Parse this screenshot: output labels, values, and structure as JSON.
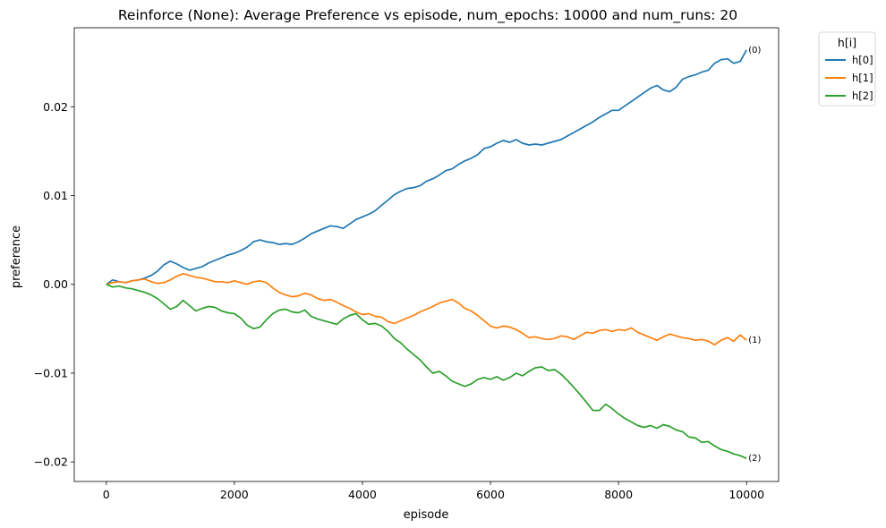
{
  "chart_data": {
    "type": "line",
    "title": "Reinforce (None): Average Preference vs episode, num_epochs: 10000 and num_runs: 20",
    "xlabel": "episode",
    "ylabel": "preference",
    "xlim": [
      -500,
      10500
    ],
    "ylim": [
      -0.0222,
      0.0289
    ],
    "xticks": [
      0,
      2000,
      4000,
      6000,
      8000,
      10000
    ],
    "yticks": [
      -0.02,
      -0.01,
      0.0,
      0.01,
      0.02
    ],
    "xtick_labels": [
      "0",
      "2000",
      "4000",
      "6000",
      "8000",
      "10000"
    ],
    "ytick_labels": [
      "−0.02",
      "−0.01",
      "0.00",
      "0.01",
      "0.02"
    ],
    "grid": false,
    "legend": {
      "title": "h[i]",
      "placement": "outside-top-right"
    },
    "series": [
      {
        "name": "h[0]",
        "end_label": "(0)",
        "color": "#1f77b4",
        "x": [
          0,
          100,
          200,
          300,
          400,
          500,
          600,
          700,
          800,
          900,
          1000,
          1100,
          1200,
          1300,
          1400,
          1500,
          1600,
          1700,
          1800,
          1900,
          2000,
          2100,
          2200,
          2300,
          2400,
          2500,
          2600,
          2700,
          2800,
          2900,
          3000,
          3100,
          3200,
          3300,
          3400,
          3500,
          3600,
          3700,
          3800,
          3900,
          4000,
          4100,
          4200,
          4300,
          4400,
          4500,
          4600,
          4700,
          4800,
          4900,
          5000,
          5100,
          5200,
          5300,
          5400,
          5500,
          5600,
          5700,
          5800,
          5900,
          6000,
          6100,
          6200,
          6300,
          6400,
          6500,
          6600,
          6700,
          6800,
          6900,
          7000,
          7100,
          7200,
          7300,
          7400,
          7500,
          7600,
          7700,
          7800,
          7900,
          8000,
          8100,
          8200,
          8300,
          8400,
          8500,
          8600,
          8700,
          8800,
          8900,
          9000,
          9100,
          9200,
          9300,
          9400,
          9500,
          9600,
          9700,
          9800,
          9900,
          10000
        ],
        "y": [
          0.0,
          0.0005,
          0.0003,
          0.0002,
          0.0004,
          0.0005,
          0.0007,
          0.001,
          0.0015,
          0.0022,
          0.0026,
          0.0023,
          0.0019,
          0.0016,
          0.0018,
          0.002,
          0.0024,
          0.0027,
          0.003,
          0.0033,
          0.0035,
          0.0038,
          0.0042,
          0.0048,
          0.005,
          0.0048,
          0.0047,
          0.0045,
          0.0046,
          0.0045,
          0.0048,
          0.0052,
          0.0057,
          0.006,
          0.0063,
          0.0066,
          0.0065,
          0.0063,
          0.0068,
          0.0073,
          0.0076,
          0.0079,
          0.0083,
          0.0089,
          0.0095,
          0.0101,
          0.0105,
          0.0108,
          0.0109,
          0.0111,
          0.0116,
          0.0119,
          0.0123,
          0.0128,
          0.013,
          0.0135,
          0.0139,
          0.0142,
          0.0146,
          0.0153,
          0.0155,
          0.0159,
          0.0162,
          0.016,
          0.0163,
          0.0159,
          0.0157,
          0.0158,
          0.0157,
          0.0159,
          0.0161,
          0.0163,
          0.0167,
          0.0171,
          0.0175,
          0.0179,
          0.0183,
          0.0188,
          0.0192,
          0.0196,
          0.0196,
          0.0201,
          0.0206,
          0.0211,
          0.0216,
          0.0221,
          0.0224,
          0.0219,
          0.0217,
          0.0222,
          0.0231,
          0.0234,
          0.0236,
          0.0239,
          0.0241,
          0.0249,
          0.0253,
          0.0254,
          0.0249,
          0.0251,
          0.0264
        ]
      },
      {
        "name": "h[1]",
        "end_label": "(1)",
        "color": "#ff7f0e",
        "x": [
          0,
          100,
          200,
          300,
          400,
          500,
          600,
          700,
          800,
          900,
          1000,
          1100,
          1200,
          1300,
          1400,
          1500,
          1600,
          1700,
          1800,
          1900,
          2000,
          2100,
          2200,
          2300,
          2400,
          2500,
          2600,
          2700,
          2800,
          2900,
          3000,
          3100,
          3200,
          3300,
          3400,
          3500,
          3600,
          3700,
          3800,
          3900,
          4000,
          4100,
          4200,
          4300,
          4400,
          4500,
          4600,
          4700,
          4800,
          4900,
          5000,
          5100,
          5200,
          5300,
          5400,
          5500,
          5600,
          5700,
          5800,
          5900,
          6000,
          6100,
          6200,
          6300,
          6400,
          6500,
          6600,
          6700,
          6800,
          6900,
          7000,
          7100,
          7200,
          7300,
          7400,
          7500,
          7600,
          7700,
          7800,
          7900,
          8000,
          8100,
          8200,
          8300,
          8400,
          8500,
          8600,
          8700,
          8800,
          8900,
          9000,
          9100,
          9200,
          9300,
          9400,
          9500,
          9600,
          9700,
          9800,
          9900,
          10000
        ],
        "y": [
          0.0,
          0.0002,
          0.0003,
          0.0002,
          0.0004,
          0.0005,
          0.0006,
          0.0003,
          0.0001,
          0.0002,
          0.0005,
          0.0009,
          0.0012,
          0.001,
          0.0008,
          0.0007,
          0.0005,
          0.0003,
          0.0003,
          0.0002,
          0.0004,
          0.0002,
          0.0,
          0.0003,
          0.0004,
          0.0002,
          -0.0004,
          -0.0009,
          -0.0012,
          -0.0014,
          -0.0013,
          -0.001,
          -0.0012,
          -0.0016,
          -0.0018,
          -0.0017,
          -0.002,
          -0.0024,
          -0.0027,
          -0.0031,
          -0.0034,
          -0.0033,
          -0.0036,
          -0.0037,
          -0.0042,
          -0.0044,
          -0.0041,
          -0.0038,
          -0.0035,
          -0.0031,
          -0.0028,
          -0.0025,
          -0.0021,
          -0.0019,
          -0.0017,
          -0.0021,
          -0.0027,
          -0.003,
          -0.0035,
          -0.0041,
          -0.0047,
          -0.0049,
          -0.0047,
          -0.0048,
          -0.0051,
          -0.0055,
          -0.006,
          -0.0059,
          -0.0061,
          -0.0062,
          -0.0061,
          -0.0058,
          -0.0059,
          -0.0062,
          -0.0058,
          -0.0054,
          -0.0055,
          -0.0052,
          -0.0051,
          -0.0053,
          -0.0051,
          -0.0052,
          -0.0049,
          -0.0054,
          -0.0057,
          -0.006,
          -0.0063,
          -0.0059,
          -0.0056,
          -0.0058,
          -0.006,
          -0.0061,
          -0.0063,
          -0.0062,
          -0.0064,
          -0.0068,
          -0.0063,
          -0.006,
          -0.0064,
          -0.0057,
          -0.0063
        ]
      },
      {
        "name": "h[2]",
        "end_label": "(2)",
        "color": "#2ca02c",
        "x": [
          0,
          100,
          200,
          300,
          400,
          500,
          600,
          700,
          800,
          900,
          1000,
          1100,
          1200,
          1300,
          1400,
          1500,
          1600,
          1700,
          1800,
          1900,
          2000,
          2100,
          2200,
          2300,
          2400,
          2500,
          2600,
          2700,
          2800,
          2900,
          3000,
          3100,
          3200,
          3300,
          3400,
          3500,
          3600,
          3700,
          3800,
          3900,
          4000,
          4100,
          4200,
          4300,
          4400,
          4500,
          4600,
          4700,
          4800,
          4900,
          5000,
          5100,
          5200,
          5300,
          5400,
          5500,
          5600,
          5700,
          5800,
          5900,
          6000,
          6100,
          6200,
          6300,
          6400,
          6500,
          6600,
          6700,
          6800,
          6900,
          7000,
          7100,
          7200,
          7300,
          7400,
          7500,
          7600,
          7700,
          7800,
          7900,
          8000,
          8100,
          8200,
          8300,
          8400,
          8500,
          8600,
          8700,
          8800,
          8900,
          9000,
          9100,
          9200,
          9300,
          9400,
          9500,
          9600,
          9700,
          9800,
          9900,
          10000
        ],
        "y": [
          0.0,
          -0.0003,
          -0.0002,
          -0.0004,
          -0.0005,
          -0.0007,
          -0.0009,
          -0.0012,
          -0.0016,
          -0.0022,
          -0.0028,
          -0.0025,
          -0.0018,
          -0.0024,
          -0.003,
          -0.0027,
          -0.0025,
          -0.0026,
          -0.003,
          -0.0032,
          -0.0033,
          -0.0038,
          -0.0046,
          -0.005,
          -0.0048,
          -0.004,
          -0.0033,
          -0.0029,
          -0.0028,
          -0.0031,
          -0.0032,
          -0.0029,
          -0.0036,
          -0.0039,
          -0.0041,
          -0.0043,
          -0.0045,
          -0.0039,
          -0.0035,
          -0.0033,
          -0.004,
          -0.0045,
          -0.0044,
          -0.0047,
          -0.0053,
          -0.0061,
          -0.0066,
          -0.0073,
          -0.0079,
          -0.0085,
          -0.0093,
          -0.01,
          -0.0098,
          -0.0103,
          -0.0109,
          -0.0112,
          -0.0115,
          -0.0112,
          -0.0107,
          -0.0105,
          -0.0107,
          -0.0104,
          -0.0108,
          -0.0105,
          -0.01,
          -0.0103,
          -0.0098,
          -0.0094,
          -0.0093,
          -0.0097,
          -0.0096,
          -0.0101,
          -0.0108,
          -0.0116,
          -0.0124,
          -0.0133,
          -0.0142,
          -0.0142,
          -0.0135,
          -0.014,
          -0.0146,
          -0.0151,
          -0.0155,
          -0.0159,
          -0.0161,
          -0.0159,
          -0.0162,
          -0.0158,
          -0.016,
          -0.0164,
          -0.0166,
          -0.0172,
          -0.0173,
          -0.0178,
          -0.0177,
          -0.0182,
          -0.0186,
          -0.0188,
          -0.0191,
          -0.0193,
          -0.0196
        ]
      }
    ]
  }
}
